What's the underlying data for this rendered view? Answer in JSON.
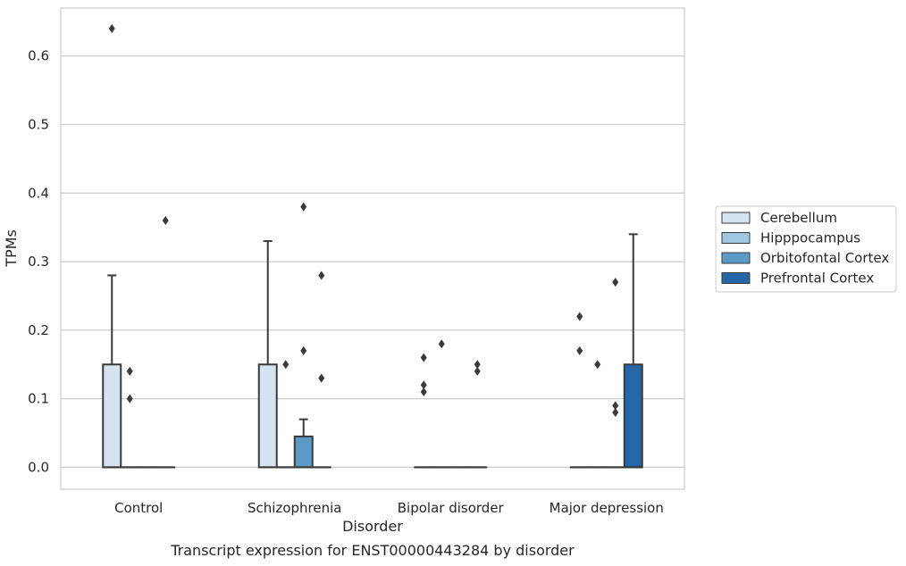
{
  "chart_data": {
    "type": "box",
    "title": "Transcript expression for ENST00000443284 by disorder",
    "xlabel": "Disorder",
    "ylabel": "TPMs",
    "categories": [
      "Control",
      "Schizophrenia",
      "Bipolar disorder",
      "Major depression"
    ],
    "ylim": [
      -0.032,
      0.67
    ],
    "yticks": [
      0.0,
      0.1,
      0.2,
      0.3,
      0.4,
      0.5,
      0.6
    ],
    "ytick_labels": [
      "0.0",
      "0.1",
      "0.2",
      "0.3",
      "0.4",
      "0.5",
      "0.6"
    ],
    "grid": true,
    "legend_position": "right",
    "series": [
      {
        "name": "Cerebellum",
        "color": "#d4e3f2",
        "boxes": [
          {
            "q1": 0.0,
            "median": 0.0,
            "q3": 0.15,
            "whislo": 0.0,
            "whishi": 0.28,
            "fliers": [
              0.64
            ]
          },
          {
            "q1": 0.0,
            "median": 0.0,
            "q3": 0.15,
            "whislo": 0.0,
            "whishi": 0.33,
            "fliers": []
          },
          {
            "q1": 0.0,
            "median": 0.0,
            "q3": 0.0,
            "whislo": 0.0,
            "whishi": 0.0,
            "fliers": [
              0.16,
              0.12,
              0.11
            ]
          },
          {
            "q1": 0.0,
            "median": 0.0,
            "q3": 0.0,
            "whislo": 0.0,
            "whishi": 0.0,
            "fliers": [
              0.22,
              0.17
            ]
          }
        ]
      },
      {
        "name": "Hipppocampus",
        "color": "#9fc7e1",
        "boxes": [
          {
            "q1": 0.0,
            "median": 0.0,
            "q3": 0.0,
            "whislo": 0.0,
            "whishi": 0.0,
            "fliers": [
              0.14,
              0.1
            ]
          },
          {
            "q1": 0.0,
            "median": 0.0,
            "q3": 0.0,
            "whislo": 0.0,
            "whishi": 0.0,
            "fliers": [
              0.15
            ]
          },
          {
            "q1": 0.0,
            "median": 0.0,
            "q3": 0.0,
            "whislo": 0.0,
            "whishi": 0.0,
            "fliers": [
              0.18
            ]
          },
          {
            "q1": 0.0,
            "median": 0.0,
            "q3": 0.0,
            "whislo": 0.0,
            "whishi": 0.0,
            "fliers": [
              0.15
            ]
          }
        ]
      },
      {
        "name": "Orbitofontal Cortex",
        "color": "#5b9ac7",
        "boxes": [
          {
            "q1": 0.0,
            "median": 0.0,
            "q3": 0.0,
            "whislo": 0.0,
            "whishi": 0.0,
            "fliers": []
          },
          {
            "q1": 0.0,
            "median": 0.0,
            "q3": 0.045,
            "whislo": 0.0,
            "whishi": 0.07,
            "fliers": [
              0.38,
              0.17
            ]
          },
          {
            "q1": 0.0,
            "median": 0.0,
            "q3": 0.0,
            "whislo": 0.0,
            "whishi": 0.0,
            "fliers": []
          },
          {
            "q1": 0.0,
            "median": 0.0,
            "q3": 0.0,
            "whislo": 0.0,
            "whishi": 0.0,
            "fliers": [
              0.27,
              0.09,
              0.08
            ]
          }
        ]
      },
      {
        "name": "Prefrontal Cortex",
        "color": "#2566a8",
        "boxes": [
          {
            "q1": 0.0,
            "median": 0.0,
            "q3": 0.0,
            "whislo": 0.0,
            "whishi": 0.0,
            "fliers": [
              0.36
            ]
          },
          {
            "q1": 0.0,
            "median": 0.0,
            "q3": 0.0,
            "whislo": 0.0,
            "whishi": 0.0,
            "fliers": [
              0.28,
              0.13
            ]
          },
          {
            "q1": 0.0,
            "median": 0.0,
            "q3": 0.0,
            "whislo": 0.0,
            "whishi": 0.0,
            "fliers": [
              0.15,
              0.14
            ]
          },
          {
            "q1": 0.0,
            "median": 0.0,
            "q3": 0.15,
            "whislo": 0.0,
            "whishi": 0.34,
            "fliers": []
          }
        ]
      }
    ]
  }
}
